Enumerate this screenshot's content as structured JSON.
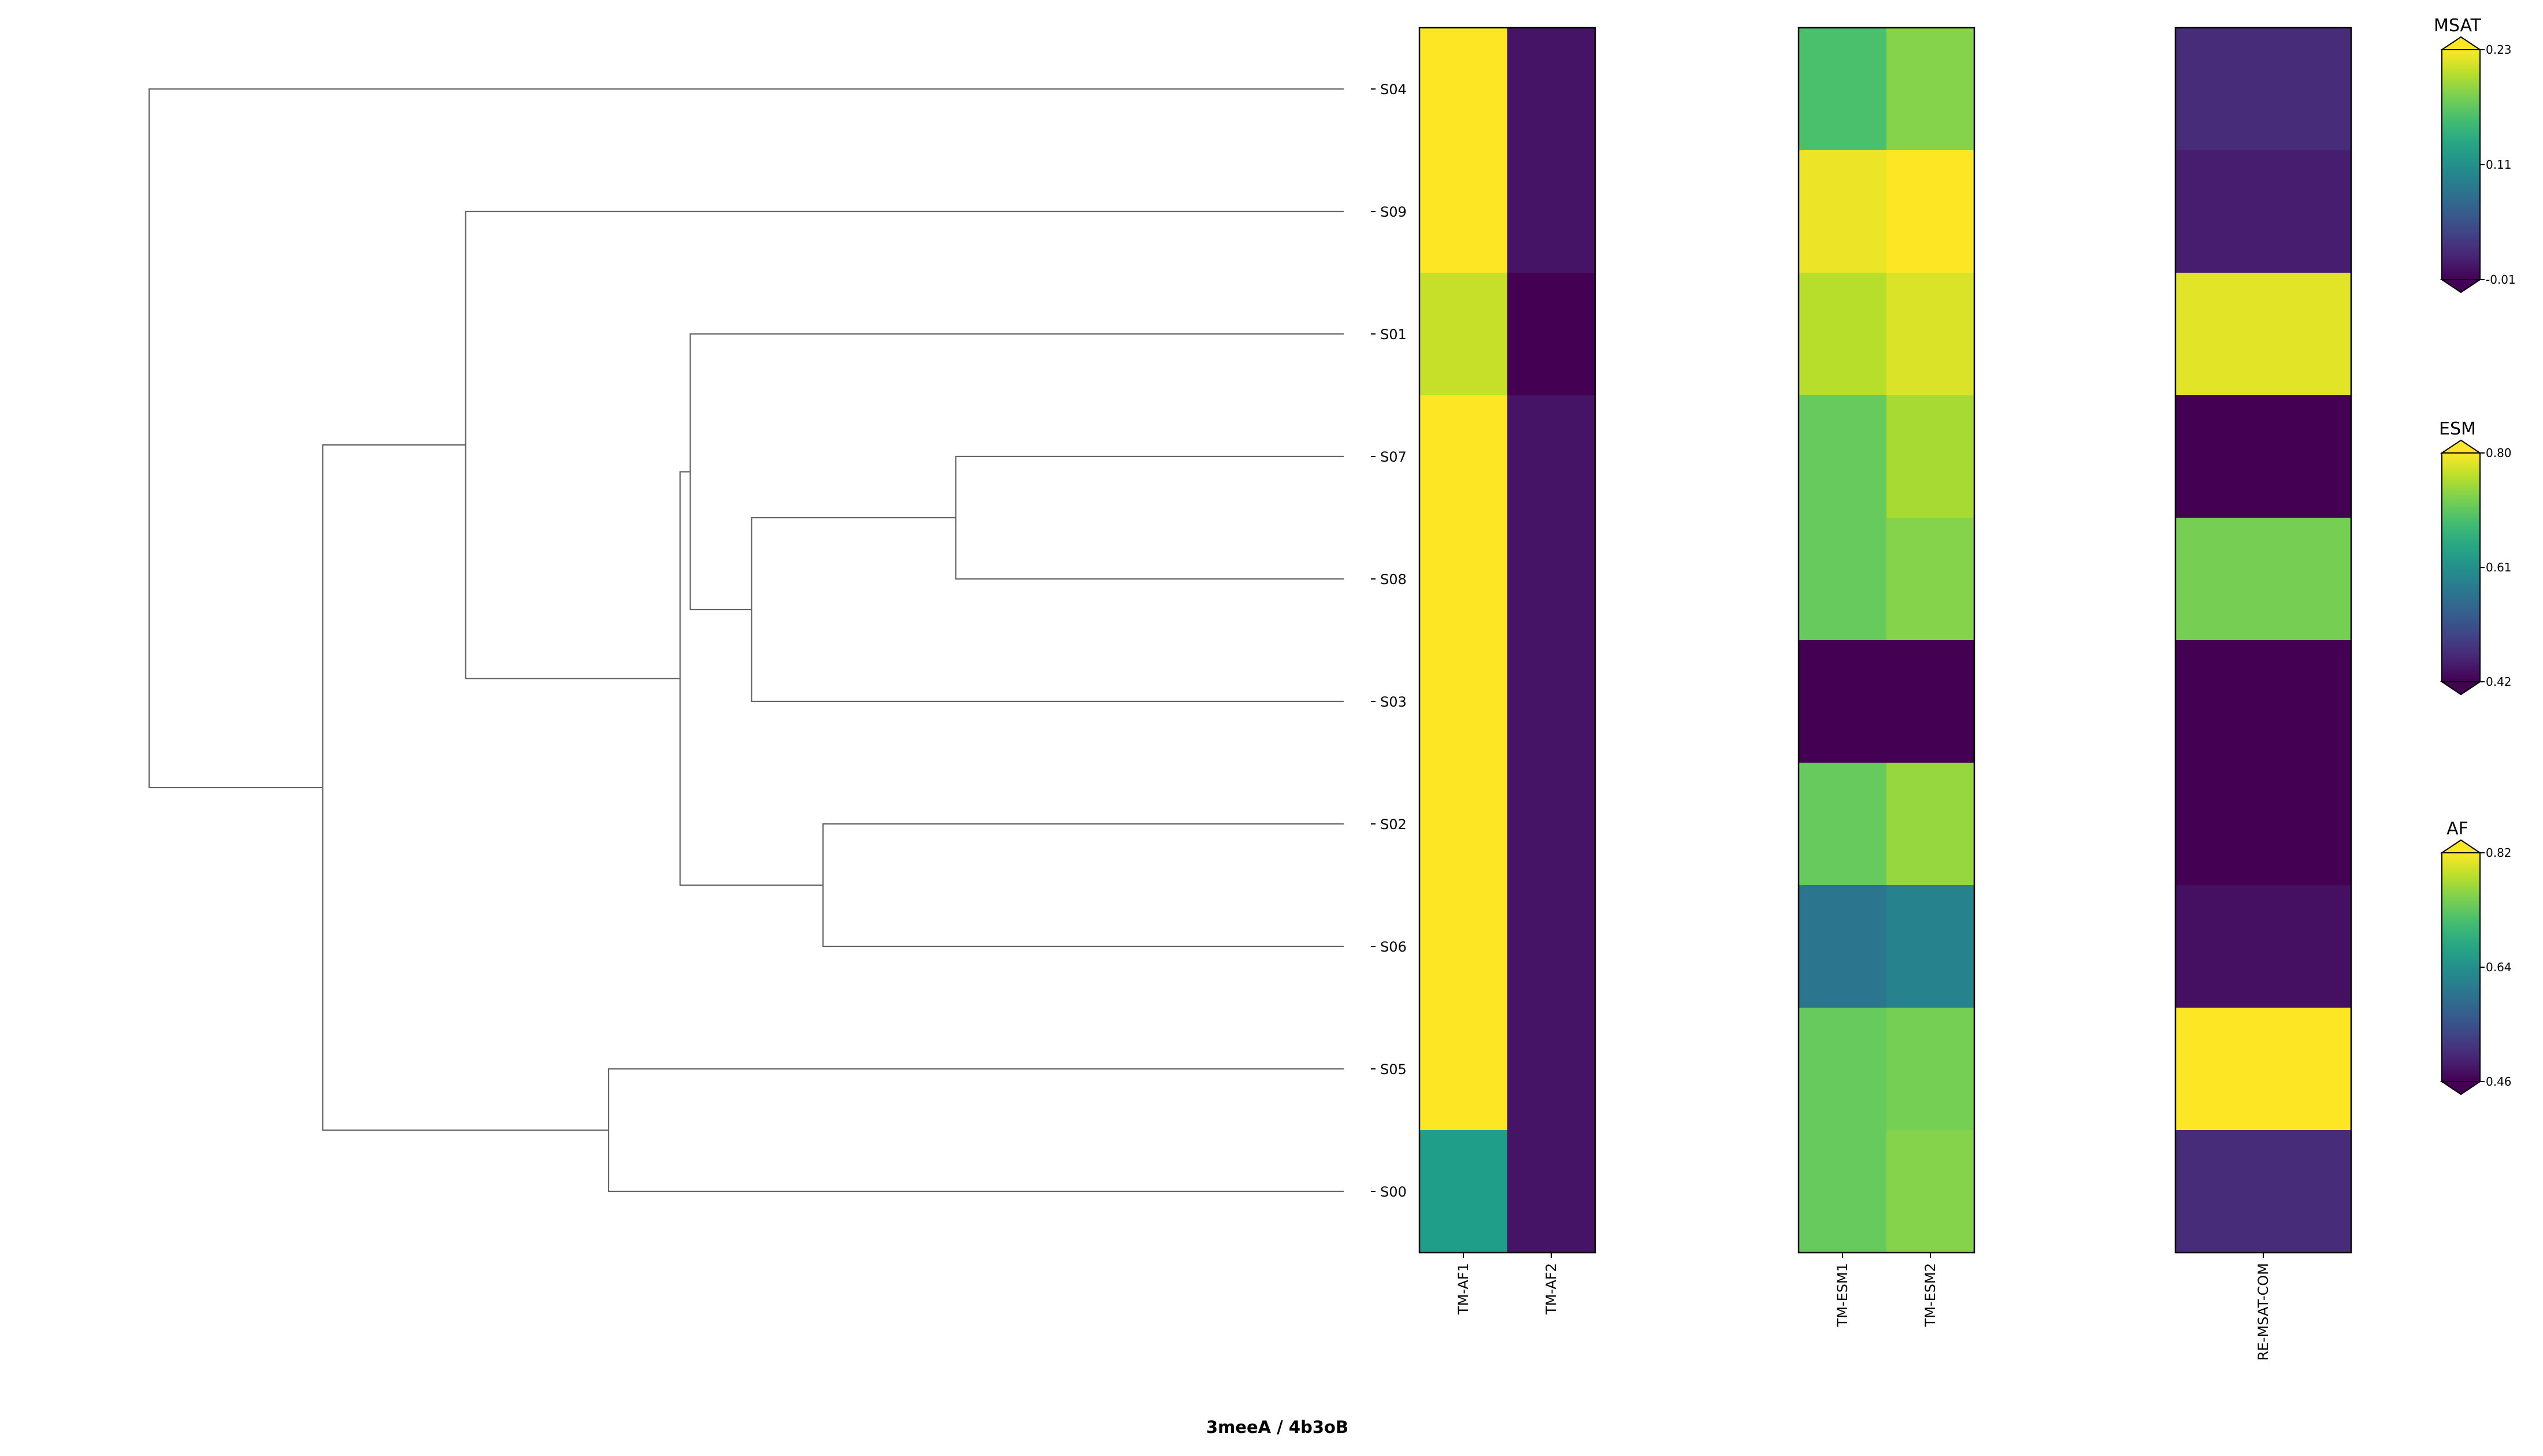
{
  "chart_data": {
    "type": "heatmap",
    "title": "3meeA / 4b3oB",
    "row_labels": [
      "S04",
      "S09",
      "S01",
      "S07",
      "S08",
      "S03",
      "S02",
      "S06",
      "S05",
      "S00"
    ],
    "dendrogram": {
      "orientation": "left",
      "merges": [
        {
          "left": "S07",
          "right": "S08",
          "height": 0.38
        },
        {
          "left": "S07+S08",
          "right": "S03",
          "height": 0.58
        },
        {
          "left": "S02",
          "right": "S06",
          "height": 0.51
        },
        {
          "left": "S01",
          "right": "S07+S08+S03",
          "height": 0.64
        },
        {
          "left": "S01+S07+S08+S03",
          "right": "S02+S06",
          "height": 0.65
        },
        {
          "left": "S09",
          "right": "S01+S07+S08+S03+S02+S06",
          "height": 0.86
        },
        {
          "left": "S05",
          "right": "S00",
          "height": 0.72
        },
        {
          "left": "S09+rest",
          "right": "S05+S00",
          "height": 1.0
        },
        {
          "left": "S04",
          "right": "all",
          "height": 1.17
        }
      ]
    },
    "groups": [
      {
        "name": "AF",
        "columns": [
          "TM-AF1",
          "TM-AF2"
        ],
        "colorbar": {
          "title": "AF",
          "min": 0.46,
          "max": 0.82,
          "ticks": [
            "0.82",
            "0.64",
            "0.46"
          ]
        },
        "values": [
          [
            0.82,
            0.48
          ],
          [
            0.82,
            0.48
          ],
          [
            0.79,
            0.46
          ],
          [
            0.82,
            0.48
          ],
          [
            0.82,
            0.48
          ],
          [
            0.82,
            0.48
          ],
          [
            0.82,
            0.48
          ],
          [
            0.82,
            0.48
          ],
          [
            0.82,
            0.48
          ],
          [
            0.66,
            0.48
          ]
        ]
      },
      {
        "name": "ESM",
        "columns": [
          "TM-ESM1",
          "TM-ESM2"
        ],
        "colorbar": {
          "title": "ESM",
          "min": 0.42,
          "max": 0.8,
          "ticks": [
            "0.80",
            "0.61",
            "0.42"
          ]
        },
        "values": [
          [
            0.69,
            0.73
          ],
          [
            0.79,
            0.8
          ],
          [
            0.76,
            0.78
          ],
          [
            0.71,
            0.75
          ],
          [
            0.71,
            0.73
          ],
          [
            0.42,
            0.42
          ],
          [
            0.71,
            0.74
          ],
          [
            0.57,
            0.59
          ],
          [
            0.71,
            0.72
          ],
          [
            0.71,
            0.73
          ]
        ]
      },
      {
        "name": "MSAT",
        "columns": [
          "RE-MSAT-COM"
        ],
        "colorbar": {
          "title": "MSAT",
          "min": -0.01,
          "max": 0.23,
          "ticks": [
            "0.23",
            "0.11",
            "-0.01"
          ]
        },
        "values": [
          [
            0.02
          ],
          [
            0.01
          ],
          [
            0.22
          ],
          [
            -0.01
          ],
          [
            0.18
          ],
          [
            -0.01
          ],
          [
            -0.01
          ],
          [
            0.0
          ],
          [
            0.23
          ],
          [
            0.02
          ]
        ]
      }
    ]
  }
}
